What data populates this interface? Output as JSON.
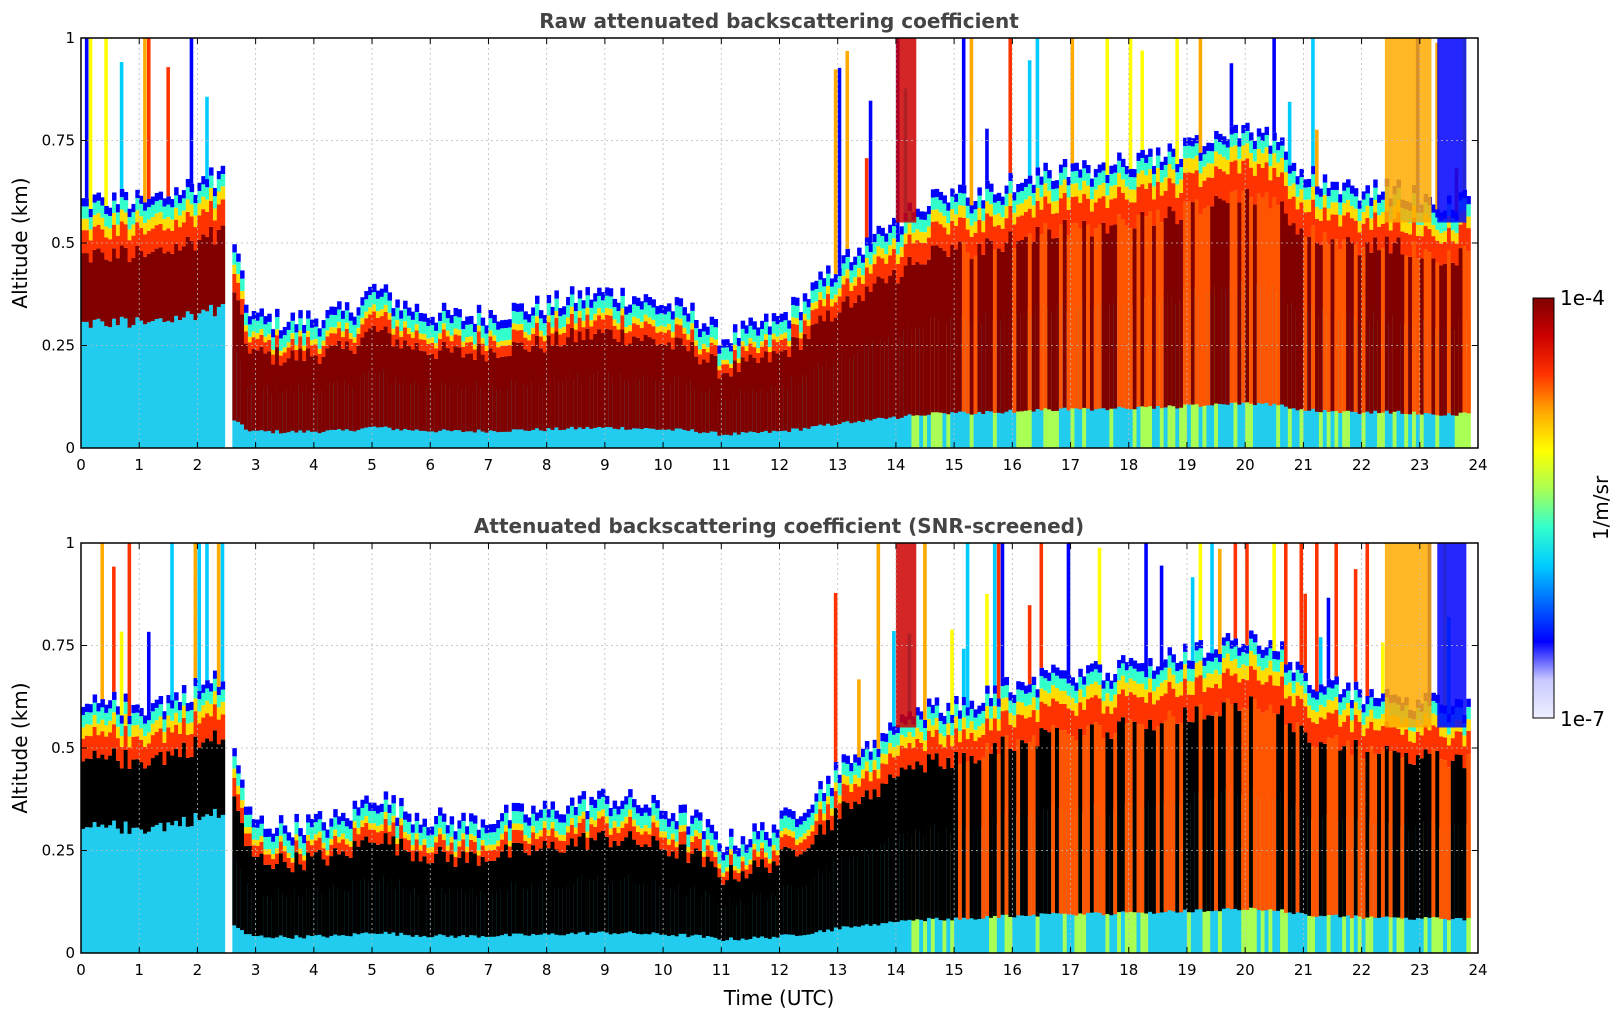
{
  "chart_data": [
    {
      "type": "heatmap",
      "title": "Raw attenuated backscattering coefficient",
      "xlabel": "",
      "ylabel": "Altitude (km)",
      "xlim": [
        0,
        24
      ],
      "ylim": [
        0,
        1
      ],
      "x_ticks": [
        "0",
        "1",
        "2",
        "3",
        "4",
        "5",
        "6",
        "7",
        "8",
        "9",
        "10",
        "11",
        "12",
        "13",
        "14",
        "15",
        "16",
        "17",
        "18",
        "19",
        "20",
        "21",
        "22",
        "23",
        "24"
      ],
      "y_ticks": [
        "0",
        "0.25",
        "0.5",
        "0.75",
        "1"
      ],
      "grid": true,
      "screened": false,
      "layer_top_km": {
        "time_utc": [
          0,
          0.5,
          1,
          1.5,
          2,
          2.4,
          2.8,
          3,
          3.5,
          4,
          4.5,
          5,
          5.5,
          6,
          6.5,
          7,
          7.5,
          8,
          8.5,
          9,
          9.5,
          10,
          10.5,
          11,
          11.5,
          12,
          12.5,
          13,
          13.5,
          14,
          14.5,
          15,
          15.5,
          16,
          16.5,
          17,
          17.5,
          18,
          18.5,
          19,
          19.5,
          20,
          20.5,
          21,
          21.5,
          22,
          22.5,
          23,
          23.5,
          23.8
        ],
        "altitude_km": [
          0.55,
          0.56,
          0.55,
          0.57,
          0.6,
          0.62,
          0.3,
          0.27,
          0.26,
          0.27,
          0.28,
          0.34,
          0.3,
          0.28,
          0.27,
          0.28,
          0.29,
          0.3,
          0.32,
          0.33,
          0.32,
          0.3,
          0.28,
          0.22,
          0.24,
          0.27,
          0.33,
          0.4,
          0.46,
          0.5,
          0.55,
          0.56,
          0.58,
          0.6,
          0.62,
          0.63,
          0.64,
          0.65,
          0.66,
          0.68,
          0.7,
          0.72,
          0.7,
          0.62,
          0.6,
          0.58,
          0.58,
          0.56,
          0.55,
          0.55
        ]
      }
    },
    {
      "type": "heatmap",
      "title": "Attenuated backscattering coefficient (SNR-screened)",
      "xlabel": "Time (UTC)",
      "ylabel": "Altitude (km)",
      "xlim": [
        0,
        24
      ],
      "ylim": [
        0,
        1
      ],
      "x_ticks": [
        "0",
        "1",
        "2",
        "3",
        "4",
        "5",
        "6",
        "7",
        "8",
        "9",
        "10",
        "11",
        "12",
        "13",
        "14",
        "15",
        "16",
        "17",
        "18",
        "19",
        "20",
        "21",
        "22",
        "23",
        "24"
      ],
      "y_ticks": [
        "0",
        "0.25",
        "0.5",
        "0.75",
        "1"
      ],
      "grid": true,
      "screened": true,
      "layer_top_km": {
        "time_utc": [
          0,
          0.5,
          1,
          1.5,
          2,
          2.4,
          2.8,
          3,
          3.5,
          4,
          4.5,
          5,
          5.5,
          6,
          6.5,
          7,
          7.5,
          8,
          8.5,
          9,
          9.5,
          10,
          10.5,
          11,
          11.5,
          12,
          12.5,
          13,
          13.5,
          14,
          14.5,
          15,
          15.5,
          16,
          16.5,
          17,
          17.5,
          18,
          18.5,
          19,
          19.5,
          20,
          20.5,
          21,
          21.5,
          22,
          22.5,
          23,
          23.5,
          23.8
        ],
        "altitude_km": [
          0.55,
          0.56,
          0.55,
          0.57,
          0.6,
          0.62,
          0.3,
          0.27,
          0.26,
          0.27,
          0.28,
          0.34,
          0.3,
          0.28,
          0.27,
          0.28,
          0.29,
          0.3,
          0.32,
          0.33,
          0.32,
          0.3,
          0.28,
          0.22,
          0.24,
          0.27,
          0.33,
          0.4,
          0.46,
          0.5,
          0.55,
          0.56,
          0.58,
          0.6,
          0.62,
          0.63,
          0.64,
          0.65,
          0.66,
          0.68,
          0.7,
          0.72,
          0.7,
          0.62,
          0.6,
          0.58,
          0.58,
          0.56,
          0.55,
          0.55
        ]
      }
    }
  ],
  "colorbar": {
    "label": "1/m/sr",
    "max_label": "1e-4",
    "min_label": "1e-7",
    "colors": [
      "#eef0ff",
      "#c8c8ff",
      "#0000ff",
      "#0066ff",
      "#00ccff",
      "#33ffcc",
      "#aaff55",
      "#ffff00",
      "#ffaa00",
      "#ff3300",
      "#cc0000",
      "#800000"
    ]
  }
}
